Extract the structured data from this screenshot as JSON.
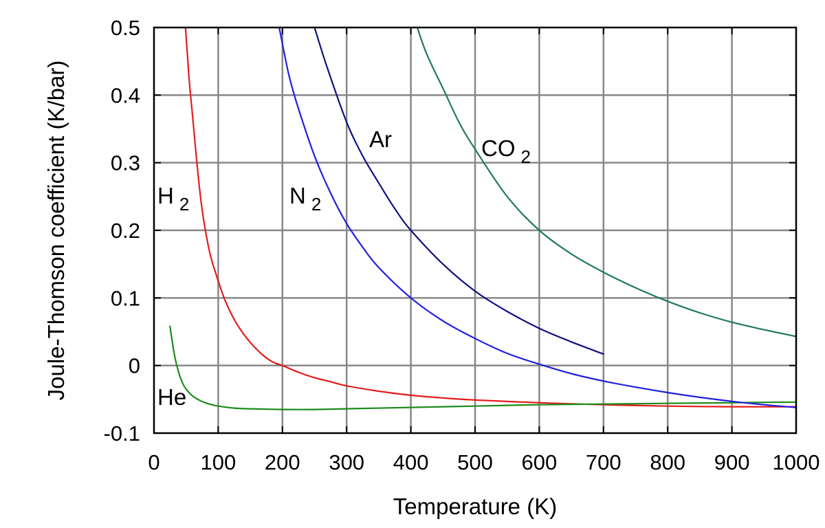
{
  "chart_data": {
    "type": "line",
    "title": "",
    "xlabel": "Temperature (K)",
    "ylabel": "Joule-Thomson coefficient (K/bar)",
    "xlim": [
      0,
      1000
    ],
    "ylim": [
      -0.1,
      0.5
    ],
    "grid": true,
    "x_ticks": [
      0,
      100,
      200,
      300,
      400,
      500,
      600,
      700,
      800,
      900,
      1000
    ],
    "x_tick_labels": [
      "0",
      "100",
      "200",
      "300",
      "400",
      "500",
      "600",
      "700",
      "800",
      "900",
      "1000"
    ],
    "y_ticks": [
      -0.1,
      0,
      0.1,
      0.2,
      0.3,
      0.4,
      0.5
    ],
    "y_tick_labels": [
      "-0.1",
      "0",
      "0.1",
      "0.2",
      "0.3",
      "0.4",
      "0.5"
    ],
    "series": [
      {
        "name": "H2",
        "label_main": "H",
        "label_sub": "2",
        "color": "#e41a1c",
        "x": [
          49,
          52,
          55,
          60,
          65,
          70,
          75,
          80,
          85,
          90,
          95,
          100,
          110,
          120,
          130,
          140,
          150,
          160,
          170,
          180,
          190,
          200,
          225,
          250,
          275,
          300,
          350,
          400,
          450,
          500,
          600,
          700,
          800,
          900,
          1000
        ],
        "y": [
          0.5,
          0.46,
          0.42,
          0.37,
          0.318,
          0.27,
          0.23,
          0.2,
          0.175,
          0.155,
          0.14,
          0.125,
          0.098,
          0.077,
          0.06,
          0.046,
          0.034,
          0.024,
          0.015,
          0.008,
          0.003,
          0.0,
          -0.01,
          -0.018,
          -0.024,
          -0.03,
          -0.038,
          -0.044,
          -0.048,
          -0.051,
          -0.055,
          -0.058,
          -0.06,
          -0.061,
          -0.061
        ]
      },
      {
        "name": "He",
        "label_main": "He",
        "label_sub": "",
        "color": "#1a8c1a",
        "x": [
          25,
          28,
          31,
          35,
          40,
          45,
          50,
          60,
          70,
          80,
          90,
          100,
          125,
          150,
          200,
          250,
          300,
          400,
          500,
          600,
          700,
          800,
          900,
          1000
        ],
        "y": [
          0.058,
          0.038,
          0.02,
          0.002,
          -0.015,
          -0.027,
          -0.035,
          -0.045,
          -0.051,
          -0.055,
          -0.058,
          -0.06,
          -0.063,
          -0.064,
          -0.065,
          -0.065,
          -0.064,
          -0.062,
          -0.06,
          -0.058,
          -0.057,
          -0.056,
          -0.055,
          -0.054
        ]
      },
      {
        "name": "N2",
        "label_main": "N",
        "label_sub": "2",
        "color": "#1f1fe0",
        "x": [
          195,
          210,
          225,
          250,
          275,
          300,
          325,
          350,
          400,
          450,
          500,
          550,
          600,
          650,
          700,
          750,
          800,
          850,
          900,
          950,
          1000
        ],
        "y": [
          0.5,
          0.43,
          0.38,
          0.31,
          0.255,
          0.21,
          0.175,
          0.145,
          0.1,
          0.066,
          0.04,
          0.018,
          0.002,
          -0.012,
          -0.023,
          -0.032,
          -0.04,
          -0.047,
          -0.053,
          -0.058,
          -0.062
        ]
      },
      {
        "name": "Ar",
        "label_main": "Ar",
        "label_sub": "",
        "color": "#101080",
        "x": [
          250,
          270,
          300,
          325,
          350,
          375,
          400,
          450,
          500,
          550,
          600,
          650,
          700
        ],
        "y": [
          0.5,
          0.44,
          0.36,
          0.31,
          0.27,
          0.232,
          0.2,
          0.15,
          0.11,
          0.08,
          0.055,
          0.035,
          0.017
        ]
      },
      {
        "name": "CO2",
        "label_main": "CO",
        "label_sub": "2",
        "color": "#217a5a",
        "x": [
          410,
          425,
          450,
          475,
          500,
          550,
          600,
          650,
          700,
          750,
          800,
          850,
          900,
          950,
          1000
        ],
        "y": [
          0.5,
          0.46,
          0.41,
          0.36,
          0.32,
          0.25,
          0.2,
          0.165,
          0.138,
          0.115,
          0.095,
          0.078,
          0.064,
          0.053,
          0.043
        ]
      }
    ]
  }
}
